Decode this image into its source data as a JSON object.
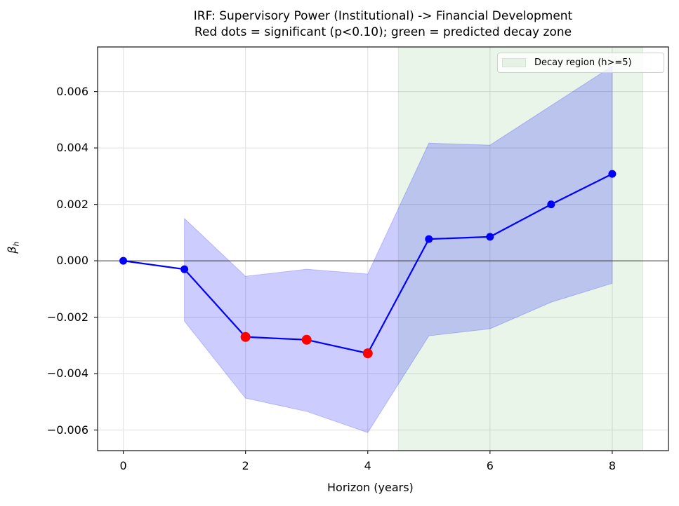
{
  "title": {
    "line1": "IRF: Supervisory Power (Institutional) -> Financial Development",
    "line2": "Red dots = significant (p<0.10); green = predicted decay zone"
  },
  "axes": {
    "xlabel": "Horizon (years)",
    "ylabel": "β_h",
    "ylabel_main": "β",
    "ylabel_sub": "h",
    "xticks": [
      "0",
      "2",
      "4",
      "6",
      "8"
    ],
    "yticks": [
      "0.006",
      "0.004",
      "0.002",
      "0.000",
      "−0.002",
      "−0.004",
      "−0.006"
    ]
  },
  "legend": {
    "entries": [
      {
        "label": "Decay region (h>=5)",
        "color": "#e6f2e6"
      }
    ]
  },
  "colors": {
    "line": "#0000ff",
    "marker": "#0000ff",
    "significant_marker": "#ff0000",
    "ci_band": "#9999ff",
    "decay_region": "#e6f2e6",
    "zero_line": "#000000",
    "grid": "#e5e5e5"
  },
  "chart_data": {
    "type": "line",
    "title": "IRF: Supervisory Power (Institutional) -> Financial Development\nRed dots = significant (p<0.10); green = predicted decay zone",
    "xlabel": "Horizon (years)",
    "ylabel": "β_h",
    "x": [
      0,
      1,
      2,
      3,
      4,
      5,
      6,
      7,
      8
    ],
    "series": [
      {
        "name": "beta_h",
        "values": [
          0.0,
          -0.0003,
          -0.0027,
          -0.0028,
          -0.00328,
          0.00077,
          0.00085,
          0.002,
          0.00308
        ]
      },
      {
        "name": "ci_upper",
        "values": [
          null,
          0.0015,
          -0.00055,
          -0.0003,
          -0.00047,
          0.00417,
          0.0041,
          0.0055,
          0.0069
        ]
      },
      {
        "name": "ci_lower",
        "values": [
          null,
          -0.00214,
          -0.00487,
          -0.00534,
          -0.00609,
          -0.00266,
          -0.00241,
          -0.00147,
          -0.0008
        ]
      }
    ],
    "significant": [
      false,
      false,
      true,
      true,
      true,
      false,
      false,
      false,
      false
    ],
    "shaded_region": {
      "label": "Decay region (h>=5)",
      "x_start": 4.5,
      "x_end": 8.5
    },
    "hline": 0,
    "xlim": [
      -0.42,
      8.92
    ],
    "ylim": [
      -0.00673,
      0.00758
    ],
    "xticks": [
      0,
      2,
      4,
      6,
      8
    ],
    "yticks": [
      -0.006,
      -0.004,
      -0.002,
      0.0,
      0.002,
      0.004,
      0.006
    ],
    "grid": true,
    "legend_position": "upper right"
  }
}
